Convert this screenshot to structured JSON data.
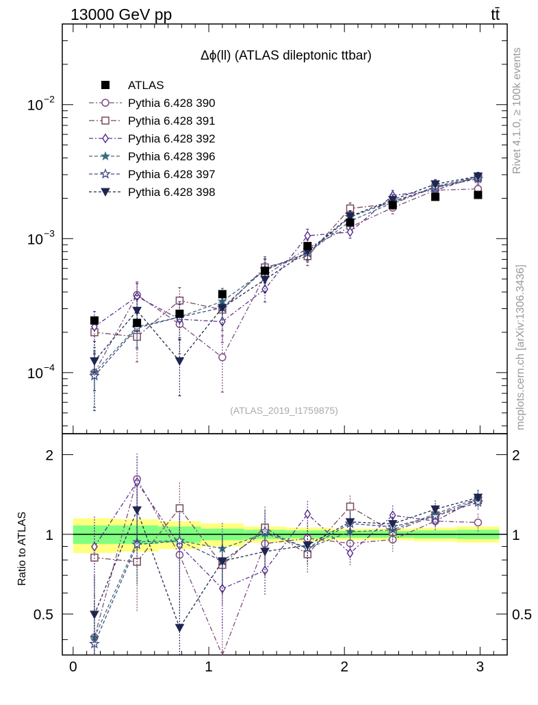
{
  "header": {
    "left": "13000 GeV pp",
    "right": "tt̄"
  },
  "side": {
    "rivet": "Rivet 4.1.0, ≥ 100k events",
    "source": "mcplots.cern.ch [arXiv:1306.3436]"
  },
  "chart_data": {
    "type": "scatter",
    "title": "Δϕ(ll) (ATLAS dileptonic ttbar)",
    "watermark": "(ATLAS_2019_I1759875)",
    "xlabel": "",
    "ylabel_ratio": "Ratio to ATLAS",
    "xlim": [
      -0.08,
      3.2
    ],
    "ylim_main": [
      3.5e-05,
      0.04
    ],
    "ylim_ratio": [
      0.35,
      2.4
    ],
    "x_ticks": [
      0,
      1,
      2,
      3
    ],
    "x_tick_labels": [
      "0",
      "1",
      "2",
      "3"
    ],
    "y_ticks_main": [
      {
        "base": "10",
        "exp": "−4",
        "v": 0.0001
      },
      {
        "base": "10",
        "exp": "−3",
        "v": 0.001
      },
      {
        "base": "10",
        "exp": "−2",
        "v": 0.01
      }
    ],
    "y_ticks_ratio": [
      0.5,
      1,
      2
    ],
    "y_tick_labels_ratio": [
      "0.5",
      "1",
      "2"
    ],
    "x": [
      0.157,
      0.471,
      0.785,
      1.1,
      1.414,
      1.728,
      2.042,
      2.356,
      2.67,
      2.985
    ],
    "data": {
      "name": "ATLAS",
      "values": [
        0.000245,
        0.000235,
        0.000275,
        0.000385,
        0.000575,
        0.00088,
        0.00132,
        0.00178,
        0.00205,
        0.00212
      ],
      "ratio_band_stat": [
        0.08,
        0.08,
        0.07,
        0.05,
        0.04,
        0.035,
        0.03,
        0.03,
        0.035,
        0.04
      ],
      "ratio_band_total": [
        0.15,
        0.14,
        0.12,
        0.1,
        0.07,
        0.06,
        0.05,
        0.05,
        0.06,
        0.07
      ]
    },
    "series": [
      {
        "name": "Pythia 6.428 390",
        "color": "#7e4a7e",
        "marker": "circle-open",
        "dash": "7,3,2,3",
        "values": [
          0.0001,
          0.00038,
          0.00023,
          0.00013,
          0.00053,
          0.00085,
          0.00122,
          0.0017,
          0.0023,
          0.00235
        ],
        "rel_err": [
          0.45,
          0.25,
          0.4,
          0.45,
          0.25,
          0.15,
          0.12,
          0.1,
          0.08,
          0.08
        ]
      },
      {
        "name": "Pythia 6.428 391",
        "color": "#7a4858",
        "marker": "square-open",
        "dash": "8,3,2,3",
        "values": [
          0.0002,
          0.000185,
          0.000345,
          0.000295,
          0.00061,
          0.00074,
          0.00168,
          0.00182,
          0.00242,
          0.00285
        ],
        "rel_err": [
          0.3,
          0.35,
          0.25,
          0.3,
          0.2,
          0.15,
          0.1,
          0.09,
          0.08,
          0.07
        ]
      },
      {
        "name": "Pythia 6.428 392",
        "color": "#5a3090",
        "marker": "diamond-open",
        "dash": "6,3,2,3",
        "values": [
          0.00022,
          0.00037,
          0.00025,
          0.00024,
          0.00042,
          0.00105,
          0.00112,
          0.0021,
          0.0023,
          0.0029
        ],
        "rel_err": [
          0.3,
          0.25,
          0.3,
          0.3,
          0.2,
          0.12,
          0.1,
          0.09,
          0.08,
          0.07
        ]
      },
      {
        "name": "Pythia 6.428 396",
        "color": "#3d6a80",
        "marker": "star-filled",
        "dash": "5,3",
        "values": [
          0.0001,
          0.00022,
          0.00026,
          0.00034,
          0.00058,
          0.00078,
          0.00135,
          0.00185,
          0.00245,
          0.0029
        ],
        "rel_err": [
          0.45,
          0.3,
          0.3,
          0.25,
          0.2,
          0.14,
          0.1,
          0.09,
          0.08,
          0.07
        ]
      },
      {
        "name": "Pythia 6.428 397",
        "color": "#3d4c80",
        "marker": "star-open",
        "dash": "5,3",
        "values": [
          9.45e-05,
          0.000215,
          0.00026,
          0.000305,
          0.00059,
          0.00078,
          0.00145,
          0.0019,
          0.0024,
          0.0028
        ],
        "rel_err": [
          0.45,
          0.3,
          0.3,
          0.25,
          0.2,
          0.14,
          0.1,
          0.09,
          0.08,
          0.07
        ]
      },
      {
        "name": "Pythia 6.428 398",
        "color": "#1e2650",
        "marker": "tri-down-filled",
        "dash": "4,3",
        "values": [
          0.000122,
          0.00029,
          0.000122,
          0.000305,
          0.000495,
          0.0008,
          0.00147,
          0.00195,
          0.00255,
          0.00292
        ],
        "rel_err": [
          0.4,
          0.3,
          0.45,
          0.25,
          0.2,
          0.14,
          0.1,
          0.09,
          0.08,
          0.07
        ]
      }
    ]
  }
}
